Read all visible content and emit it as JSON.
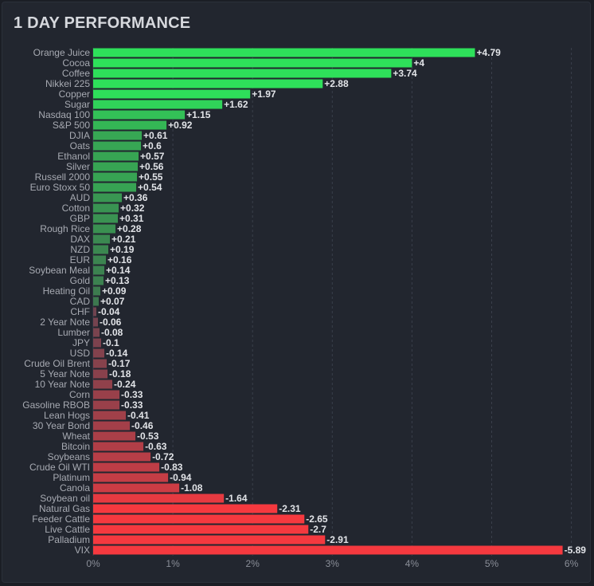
{
  "title": "1 DAY PERFORMANCE",
  "colors": {
    "positive_strong": "#2ee05a",
    "positive_weak": "#41604c",
    "negative_weak": "#5a4552",
    "negative_strong": "#f5393f",
    "grid": "#3a3f4b"
  },
  "chart_data": {
    "type": "bar",
    "orientation": "horizontal",
    "title": "1 DAY PERFORMANCE",
    "xlabel": "",
    "ylabel": "",
    "xlim": [
      0,
      6
    ],
    "x_ticks": [
      0,
      1,
      2,
      3,
      4,
      5,
      6
    ],
    "x_tick_labels": [
      "0%",
      "1%",
      "2%",
      "3%",
      "4%",
      "5%",
      "6%"
    ],
    "grid": "vertical dashed",
    "categories": [
      "Orange Juice",
      "Cocoa",
      "Coffee",
      "Nikkei 225",
      "Copper",
      "Sugar",
      "Nasdaq 100",
      "S&P 500",
      "DJIA",
      "Oats",
      "Ethanol",
      "Silver",
      "Russell 2000",
      "Euro Stoxx 50",
      "AUD",
      "Cotton",
      "GBP",
      "Rough Rice",
      "DAX",
      "NZD",
      "EUR",
      "Soybean Meal",
      "Gold",
      "Heating Oil",
      "CAD",
      "CHF",
      "2 Year Note",
      "Lumber",
      "JPY",
      "USD",
      "Crude Oil Brent",
      "5 Year Note",
      "10 Year Note",
      "Corn",
      "Gasoline RBOB",
      "Lean Hogs",
      "30 Year Bond",
      "Wheat",
      "Bitcoin",
      "Soybeans",
      "Crude Oil WTI",
      "Platinum",
      "Canola",
      "Soybean oil",
      "Natural Gas",
      "Feeder Cattle",
      "Live Cattle",
      "Palladium",
      "VIX"
    ],
    "values": [
      4.79,
      4,
      3.74,
      2.88,
      1.97,
      1.62,
      1.15,
      0.92,
      0.61,
      0.6,
      0.57,
      0.56,
      0.55,
      0.54,
      0.36,
      0.32,
      0.31,
      0.28,
      0.21,
      0.19,
      0.16,
      0.14,
      0.13,
      0.09,
      0.07,
      -0.04,
      -0.06,
      -0.08,
      -0.1,
      -0.14,
      -0.17,
      -0.18,
      -0.24,
      -0.33,
      -0.33,
      -0.41,
      -0.46,
      -0.53,
      -0.63,
      -0.72,
      -0.83,
      -0.94,
      -1.08,
      -1.64,
      -2.31,
      -2.65,
      -2.7,
      -2.91,
      -5.89
    ],
    "value_labels": [
      "+4.79",
      "+4",
      "+3.74",
      "+2.88",
      "+1.97",
      "+1.62",
      "+1.15",
      "+0.92",
      "+0.61",
      "+0.6",
      "+0.57",
      "+0.56",
      "+0.55",
      "+0.54",
      "+0.36",
      "+0.32",
      "+0.31",
      "+0.28",
      "+0.21",
      "+0.19",
      "+0.16",
      "+0.14",
      "+0.13",
      "+0.09",
      "+0.07",
      "-0.04",
      "-0.06",
      "-0.08",
      "-0.1",
      "-0.14",
      "-0.17",
      "-0.18",
      "-0.24",
      "-0.33",
      "-0.33",
      "-0.41",
      "-0.46",
      "-0.53",
      "-0.63",
      "-0.72",
      "-0.83",
      "-0.94",
      "-1.08",
      "-1.64",
      "-2.31",
      "-2.65",
      "-2.7",
      "-2.91",
      "-5.89"
    ]
  }
}
